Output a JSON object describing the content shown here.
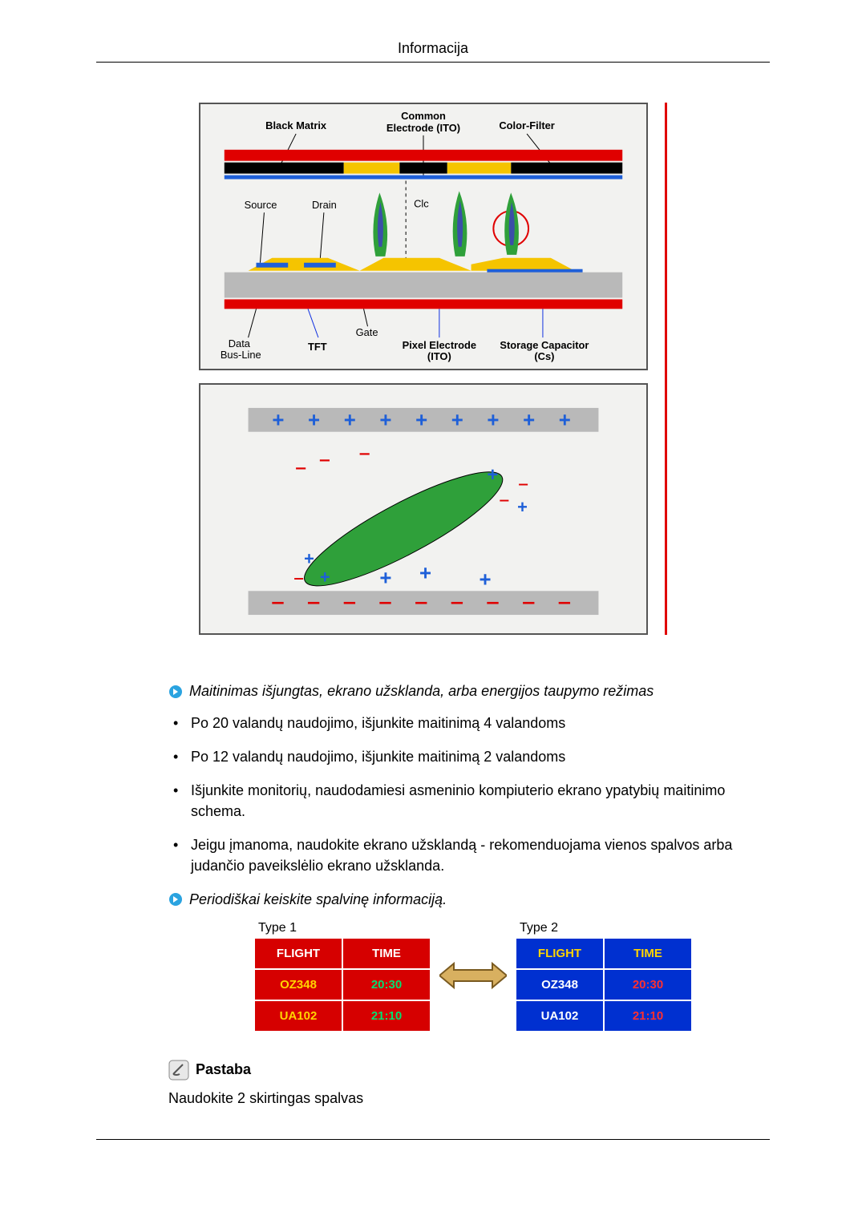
{
  "header": {
    "title": "Informacija"
  },
  "diagram_tft": {
    "type": "diagram",
    "labels": {
      "black_matrix": "Black Matrix",
      "common_electrode": "Common\nElectrode (ITO)",
      "color_filter": "Color-Filter",
      "source": "Source",
      "drain": "Drain",
      "clc": "Clc",
      "data_bus_line": "Data\nBus-Line",
      "tft": "TFT",
      "gate": "Gate",
      "pixel_electrode": "Pixel Electrode\n(ITO)",
      "storage_capacitor": "Storage Capacitor\n(Cs)"
    },
    "colors": {
      "bg": "#f2f2f0",
      "red": "#e00000",
      "black": "#000000",
      "yellow": "#f5c400",
      "glass": "#b9b9b9",
      "blue": "#1e5fd8",
      "blue_text": "#1030e0",
      "green_flame": "#2fa03a",
      "flame_core": "#3b4fa8"
    }
  },
  "diagram_lc": {
    "type": "diagram",
    "colors": {
      "bg": "#f2f2f0",
      "plate": "#b9b9b9",
      "blue": "#1e5fd8",
      "green": "#2fa03a",
      "red": "#e00000"
    },
    "top_plus_count": 9,
    "bottom_minus_count": 9
  },
  "section1": {
    "heading": "Maitinimas išjungtas, ekrano užsklanda, arba energijos taupymo režimas",
    "items": [
      "Po 20 valandų naudojimo, išjunkite maitinimą 4 valandoms",
      "Po 12 valandų naudojimo, išjunkite maitinimą 2 valandoms",
      "Išjunkite monitorių, naudodamiesi asmeninio kompiuterio ekrano ypatybių maitinimo schema.",
      "Jeigu įmanoma, naudokite ekrano užsklandą - rekomenduojama vienos spalvos arba judančio paveikslėlio ekrano užsklanda."
    ]
  },
  "section2": {
    "heading": "Periodiškai keiskite spalvinę informaciją."
  },
  "tables": {
    "type1_label": "Type 1",
    "type2_label": "Type 2",
    "headers": [
      "FLIGHT",
      "TIME"
    ],
    "rows": [
      [
        "OZ348",
        "20:30"
      ],
      [
        "UA102",
        "21:10"
      ]
    ],
    "type1": {
      "header_bg": "#d60000",
      "header_fg": "#ffffff",
      "row_bg": "#d60000",
      "col1_fg": "#ffd400",
      "col2_fg": "#00e070"
    },
    "type2": {
      "header_bg": "#0030d0",
      "header_fg": "#ffd400",
      "row_bg": "#0030d0",
      "col1_fg": "#ffffff",
      "col2_fg": "#ff3030"
    }
  },
  "note": {
    "label": "Pastaba",
    "text": "Naudokite 2 skirtingas spalvas"
  },
  "arrow_icon_color": "#2aa3e0",
  "swap_arrow": {
    "fill": "#d8b060",
    "stroke": "#7a5a20"
  }
}
